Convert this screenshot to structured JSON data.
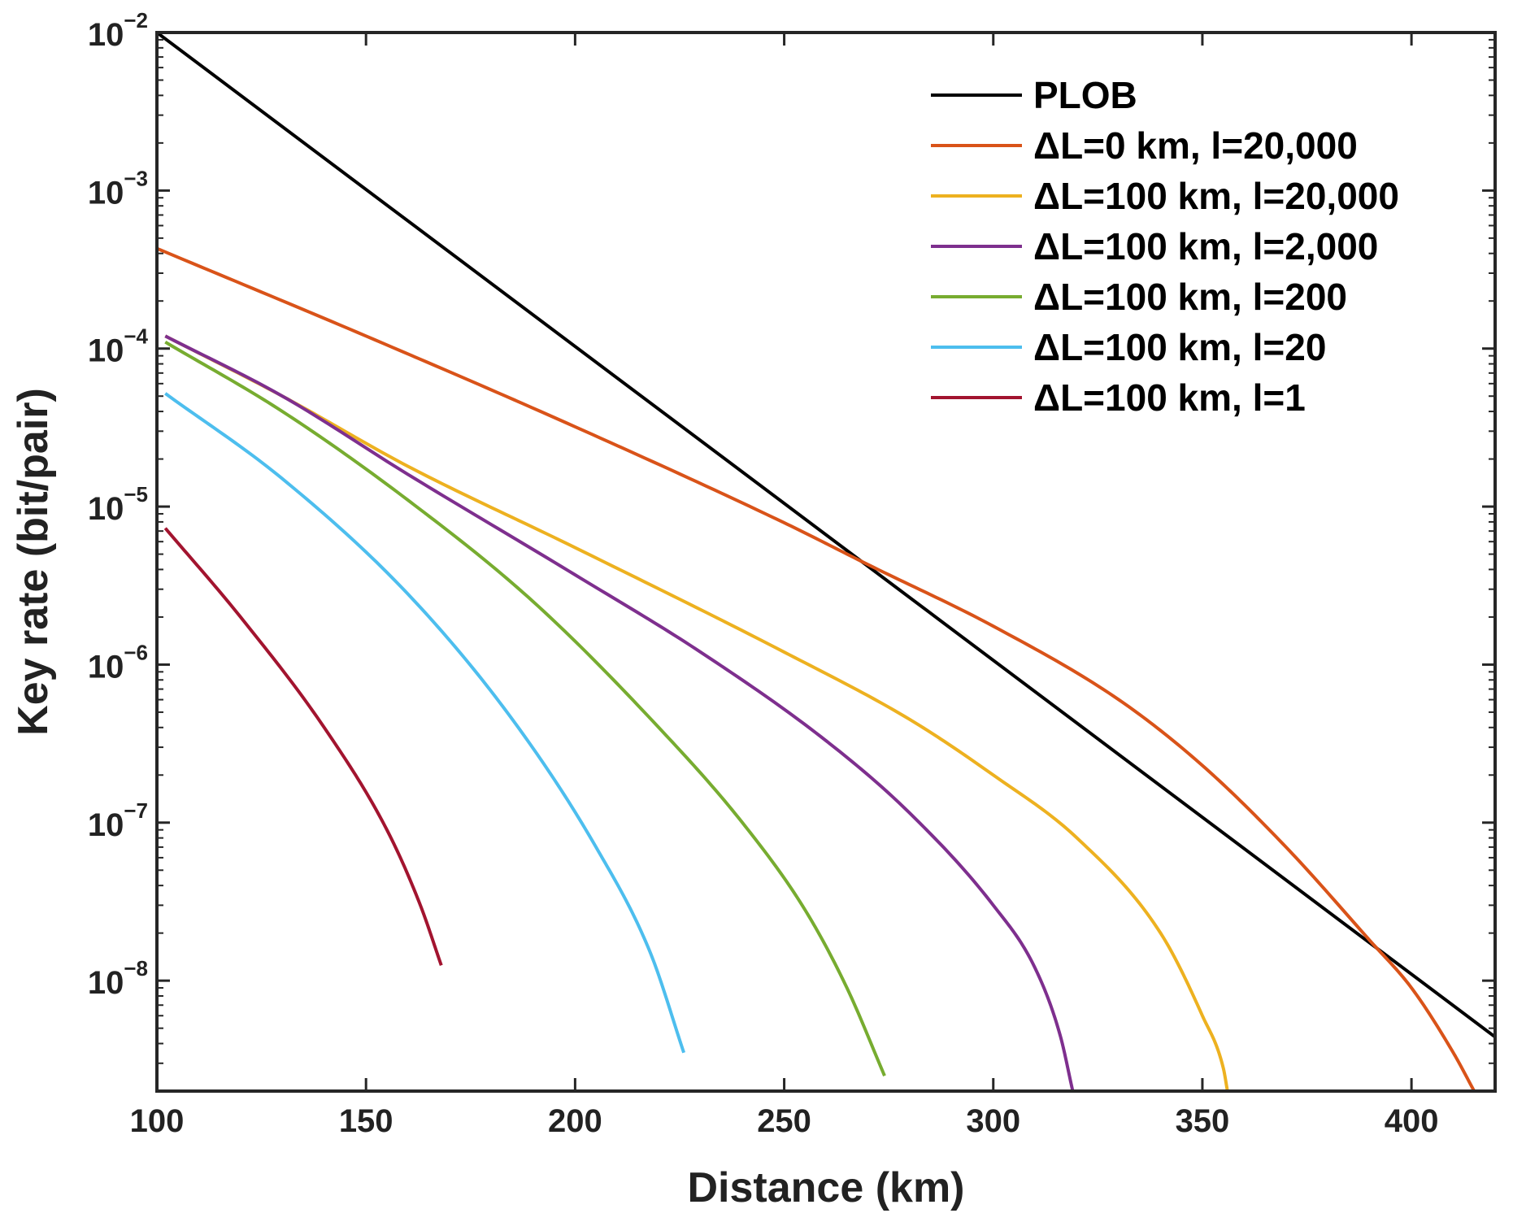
{
  "chart_data": {
    "type": "line",
    "xlabel": "Distance (km)",
    "ylabel": "Key rate (bit/pair)",
    "xscale": "linear",
    "yscale": "log",
    "xlim": [
      100,
      420
    ],
    "ylim": [
      2e-09,
      0.01
    ],
    "xticks": [
      100,
      150,
      200,
      250,
      300,
      350,
      400
    ],
    "yticks": [
      {
        "value": 0.01,
        "base": "10",
        "exp": "−2"
      },
      {
        "value": 0.001,
        "base": "10",
        "exp": "−3"
      },
      {
        "value": 0.0001,
        "base": "10",
        "exp": "−4"
      },
      {
        "value": 1e-05,
        "base": "10",
        "exp": "−5"
      },
      {
        "value": 1e-06,
        "base": "10",
        "exp": "−6"
      },
      {
        "value": 1e-07,
        "base": "10",
        "exp": "−7"
      },
      {
        "value": 1e-08,
        "base": "10",
        "exp": "−8"
      }
    ],
    "legend_position": "top-right",
    "series": [
      {
        "name": "PLOB",
        "color": "#000000",
        "x": [
          100,
          420
        ],
        "y": [
          0.01,
          4.4e-09
        ]
      },
      {
        "name": "ΔL=0 km, l=20,000",
        "color": "#d95319",
        "x": [
          100,
          150,
          200,
          250,
          270,
          300,
          330,
          350,
          370,
          390,
          400,
          410,
          415
        ],
        "y": [
          0.00043,
          0.00012,
          3.2e-05,
          7.9e-06,
          4.3e-06,
          1.75e-06,
          6e-07,
          2.3e-07,
          7e-08,
          1.8e-08,
          9e-09,
          3.5e-09,
          2e-09
        ]
      },
      {
        "name": "ΔL=100 km, l=20,000",
        "color": "#edb120",
        "x": [
          102,
          130,
          160,
          200,
          250,
          280,
          300,
          320,
          340,
          350,
          355,
          356
        ],
        "y": [
          0.00012,
          5e-05,
          1.8e-05,
          5.5e-06,
          1.2e-06,
          4.5e-07,
          2e-07,
          8e-08,
          2e-08,
          6e-09,
          2.8e-09,
          2e-09
        ]
      },
      {
        "name": "ΔL=100 km, l=2,000",
        "color": "#7e2f8e",
        "x": [
          102,
          130,
          160,
          200,
          230,
          260,
          280,
          300,
          310,
          316,
          319
        ],
        "y": [
          0.00012,
          5e-05,
          1.6e-05,
          3.7e-06,
          1.2e-06,
          3.3e-07,
          1.15e-07,
          3e-08,
          1.2e-08,
          4.5e-09,
          2e-09
        ]
      },
      {
        "name": "ΔL=100 km, l=200",
        "color": "#77ac30",
        "x": [
          102,
          130,
          160,
          190,
          220,
          240,
          255,
          265,
          274
        ],
        "y": [
          0.00011,
          4e-05,
          1.1e-05,
          2.5e-06,
          4e-07,
          1e-07,
          2.8e-08,
          9e-09,
          2.5e-09
        ]
      },
      {
        "name": "ΔL=100 km, l=20",
        "color": "#4dbeee",
        "x": [
          102,
          130,
          160,
          185,
          205,
          218,
          226
        ],
        "y": [
          5.2e-05,
          1.5e-05,
          2.8e-06,
          4.5e-07,
          7e-08,
          1.5e-08,
          3.5e-09
        ]
      },
      {
        "name": "ΔL=100 km, l=1",
        "color": "#a2142f",
        "x": [
          102,
          120,
          140,
          155,
          163,
          168
        ],
        "y": [
          7.3e-06,
          2e-06,
          4e-07,
          9e-08,
          3e-08,
          1.25e-08
        ]
      }
    ]
  }
}
